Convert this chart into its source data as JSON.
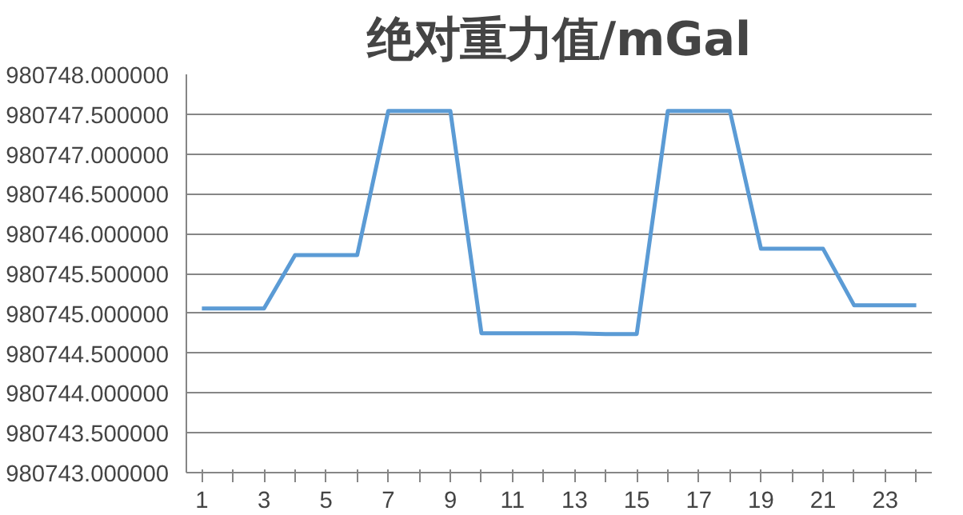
{
  "chart_data": {
    "type": "line",
    "title": "绝对重力值/mGal",
    "x": [
      1,
      2,
      3,
      4,
      5,
      6,
      7,
      8,
      9,
      10,
      11,
      12,
      13,
      14,
      15,
      16,
      17,
      18,
      19,
      20,
      21,
      22,
      23,
      24
    ],
    "xlim": [
      0.5,
      24.5
    ],
    "xticks": [
      1,
      {
        "value": 2,
        "label": null
      },
      3,
      {
        "value": 4,
        "label": null
      },
      5,
      {
        "value": 6,
        "label": null
      },
      7,
      {
        "value": 8,
        "label": null
      },
      9,
      {
        "value": 10,
        "label": null
      },
      11,
      {
        "value": 12,
        "label": null
      },
      13,
      {
        "value": 14,
        "label": null
      },
      15,
      {
        "value": 16,
        "label": null
      },
      17,
      {
        "value": 18,
        "label": null
      },
      19,
      {
        "value": 20,
        "label": null
      },
      21,
      {
        "value": 22,
        "label": null
      },
      23,
      {
        "value": 24,
        "label": null
      }
    ],
    "series": [
      {
        "color": "#5b9bd5",
        "values": [
          980745.06,
          980745.06,
          980745.06,
          980745.73,
          980745.73,
          980745.73,
          980747.54,
          980747.54,
          980747.54,
          980744.75,
          980744.75,
          980744.75,
          980744.75,
          980744.74,
          980744.74,
          980747.54,
          980747.54,
          980747.54,
          980745.81,
          980745.81,
          980745.81,
          980745.1,
          980745.1,
          980745.1
        ]
      }
    ],
    "ylim": [
      980743.0,
      980748.0
    ],
    "yticks": [
      {
        "value": 980743.0,
        "label": "980743.000000"
      },
      {
        "value": 980743.5,
        "label": "980743.500000"
      },
      {
        "value": 980744.0,
        "label": "980744.000000"
      },
      {
        "value": 980744.5,
        "label": "980744.500000"
      },
      {
        "value": 980745.0,
        "label": "980745.000000"
      },
      {
        "value": 980745.5,
        "label": "980745.500000"
      },
      {
        "value": 980746.0,
        "label": "980746.000000"
      },
      {
        "value": 980746.5,
        "label": "980746.500000"
      },
      {
        "value": 980747.0,
        "label": "980747.000000"
      },
      {
        "value": 980747.5,
        "label": "980747.500000"
      },
      {
        "value": 980748.0,
        "label": "980748.000000"
      }
    ],
    "grid": "y",
    "marker": "none",
    "line_style": "solid"
  }
}
